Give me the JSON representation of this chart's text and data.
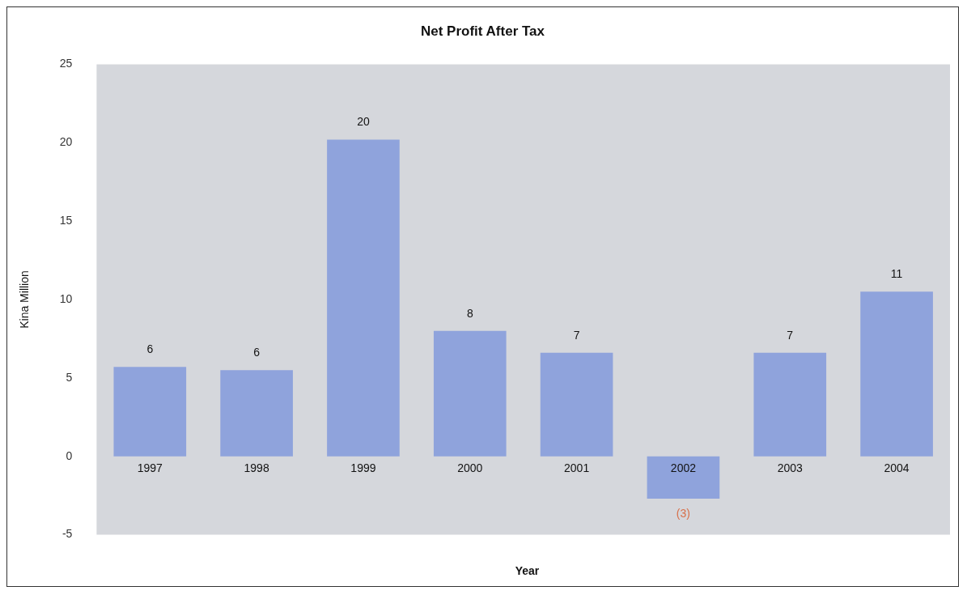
{
  "chart_data": {
    "type": "bar",
    "title": "Net Profit After Tax",
    "xlabel": "Year",
    "ylabel": "Kina Million",
    "categories": [
      "1997",
      "1998",
      "1999",
      "2000",
      "2001",
      "2002",
      "2003",
      "2004"
    ],
    "values": [
      5.7,
      5.5,
      20.2,
      8.0,
      6.6,
      -2.7,
      6.6,
      10.5
    ],
    "value_labels": [
      "6",
      "6",
      "20",
      "8",
      "7",
      "(3)",
      "7",
      "11"
    ],
    "color": "#8fa3dc",
    "ylim": [
      -5,
      25
    ],
    "yticks": [
      -5,
      0,
      5,
      10,
      15,
      20,
      25
    ],
    "grid": false,
    "legend": false
  }
}
